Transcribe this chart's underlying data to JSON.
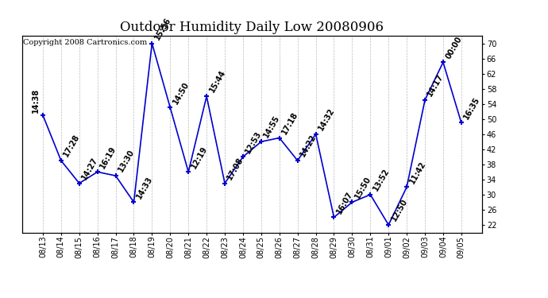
{
  "title": "Outdoor Humidity Daily Low 20080906",
  "copyright": "Copyright 2008 Cartronics.com",
  "x_labels": [
    "08/13",
    "08/14",
    "08/15",
    "08/16",
    "08/17",
    "08/18",
    "08/19",
    "08/20",
    "08/21",
    "08/22",
    "08/23",
    "08/24",
    "08/25",
    "08/26",
    "08/27",
    "08/28",
    "08/29",
    "08/30",
    "08/31",
    "09/01",
    "09/02",
    "09/03",
    "09/04",
    "09/05"
  ],
  "y_values": [
    51,
    39,
    33,
    36,
    35,
    28,
    70,
    53,
    36,
    56,
    33,
    40,
    44,
    45,
    39,
    46,
    24,
    28,
    30,
    22,
    32,
    55,
    65,
    49
  ],
  "point_labels": [
    "14:38",
    "17:28",
    "14:27",
    "16:19",
    "13:30",
    "14:33",
    "15:56",
    "14:50",
    "12:19",
    "15:44",
    "17:08",
    "12:53",
    "14:55",
    "17:18",
    "14:22",
    "14:32",
    "16:07",
    "15:50",
    "13:52",
    "12:50",
    "11:42",
    "14:17",
    "00:00",
    "16:35"
  ],
  "line_color": "#0000cc",
  "marker_color": "#0000cc",
  "background_color": "#ffffff",
  "grid_color": "#bbbbbb",
  "title_fontsize": 12,
  "label_fontsize": 7,
  "tick_fontsize": 7,
  "copyright_fontsize": 7,
  "ylim_min": 20,
  "ylim_max": 72,
  "yticks": [
    22,
    26,
    30,
    34,
    38,
    42,
    46,
    50,
    54,
    58,
    62,
    66,
    70
  ]
}
